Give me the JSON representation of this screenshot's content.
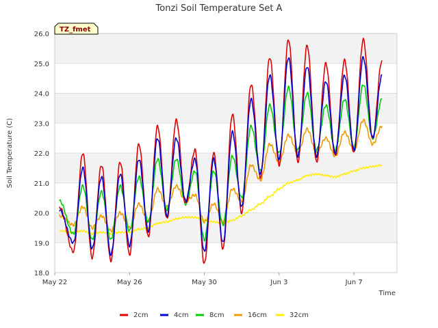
{
  "chart_data": {
    "type": "line",
    "title": "Tonzi Soil Temperature Set A",
    "xlabel": "Time",
    "ylabel": "Soil Temperature (C)",
    "annotation": "TZ_fmet",
    "ylim": [
      18.0,
      26.0
    ],
    "yticks": [
      18.0,
      19.0,
      20.0,
      21.0,
      22.0,
      23.0,
      24.0,
      25.0,
      26.0
    ],
    "ytick_labels": [
      "18.0",
      "19.0",
      "20.0",
      "21.0",
      "22.0",
      "23.0",
      "24.0",
      "25.0",
      "26.0"
    ],
    "xlim_days": [
      0,
      18.3
    ],
    "xticks_days": [
      0,
      4,
      8,
      12,
      16
    ],
    "xtick_labels": [
      "May 22",
      "May 26",
      "May 30",
      "Jun 3",
      "Jun 7"
    ],
    "legend_placement": "bottom-center",
    "grid": "horizontal-bands",
    "x_days": [
      0.25,
      1,
      1.5,
      2,
      2.5,
      3,
      3.5,
      4,
      4.5,
      5,
      5.5,
      6,
      6.5,
      7,
      7.5,
      8,
      8.5,
      9,
      9.5,
      10,
      10.5,
      11,
      11.5,
      12,
      12.5,
      13,
      13.5,
      14,
      14.5,
      15,
      15.5,
      16,
      16.5,
      17,
      17.5
    ],
    "series": [
      {
        "name": "2cm",
        "color": "#dd0000",
        "values": [
          20.2,
          18.7,
          22.0,
          18.5,
          21.6,
          18.4,
          21.7,
          18.6,
          22.3,
          19.2,
          22.9,
          19.8,
          23.1,
          20.3,
          22.1,
          18.3,
          22.0,
          18.8,
          23.3,
          20.0,
          24.3,
          21.2,
          25.2,
          21.6,
          25.8,
          21.7,
          25.6,
          21.7,
          25.0,
          21.9,
          25.1,
          22.0,
          25.8,
          22.5,
          25.1
        ]
      },
      {
        "name": "4cm",
        "color": "#0000cc",
        "values": [
          20.1,
          19.0,
          21.5,
          18.8,
          21.2,
          18.6,
          21.3,
          18.9,
          21.8,
          19.4,
          22.5,
          19.9,
          22.5,
          20.4,
          21.8,
          18.7,
          21.8,
          19.0,
          22.7,
          20.2,
          23.8,
          21.3,
          24.6,
          21.8,
          25.2,
          21.9,
          24.9,
          21.9,
          24.4,
          22.0,
          24.6,
          22.1,
          25.2,
          22.5,
          24.6
        ]
      },
      {
        "name": "8cm",
        "color": "#00cc00",
        "values": [
          20.4,
          19.3,
          20.9,
          19.1,
          20.7,
          19.1,
          20.9,
          19.4,
          21.2,
          19.7,
          21.8,
          20.1,
          21.8,
          20.3,
          21.4,
          19.1,
          21.4,
          19.6,
          21.9,
          20.5,
          22.9,
          21.4,
          23.6,
          22.0,
          24.2,
          22.1,
          24.0,
          22.1,
          23.6,
          22.1,
          23.8,
          22.2,
          24.3,
          22.5,
          23.8
        ]
      },
      {
        "name": "16cm",
        "color": "#ee9900",
        "values": [
          19.9,
          19.6,
          20.2,
          19.5,
          19.9,
          19.4,
          20.0,
          19.5,
          20.3,
          19.7,
          20.8,
          20.2,
          20.9,
          20.4,
          20.6,
          19.7,
          20.3,
          19.7,
          20.8,
          20.4,
          21.6,
          21.1,
          22.3,
          21.7,
          22.6,
          22.0,
          22.8,
          22.0,
          22.5,
          21.9,
          22.7,
          22.1,
          23.1,
          22.3,
          22.9
        ]
      },
      {
        "name": "32cm",
        "color": "#ffee00",
        "values": [
          19.4,
          19.35,
          19.4,
          19.3,
          19.35,
          19.3,
          19.35,
          19.35,
          19.45,
          19.5,
          19.65,
          19.7,
          19.8,
          19.85,
          19.85,
          19.75,
          19.7,
          19.65,
          19.75,
          19.9,
          20.1,
          20.3,
          20.55,
          20.8,
          21.0,
          21.1,
          21.25,
          21.3,
          21.25,
          21.2,
          21.3,
          21.4,
          21.5,
          21.55,
          21.6
        ]
      }
    ]
  }
}
